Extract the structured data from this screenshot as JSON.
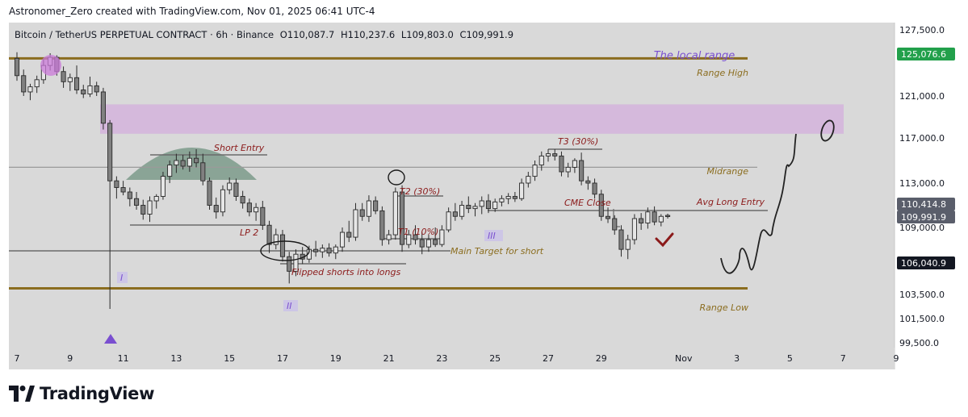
{
  "header": {
    "attribution": "Astronomer_Zero created with TradingView.com, Nov 01, 2025 06:41 UTC-4"
  },
  "symbol_line": {
    "title": "Bitcoin / TetherUS PERPETUAL CONTRACT · 6h · Binance",
    "open": "O110,087.7",
    "high": "H110,237.6",
    "low": "L109,803.0",
    "close": "C109,991.9"
  },
  "footer": {
    "brand": "TradingView"
  },
  "colors": {
    "background": "#d9d9d9",
    "range_line": "#8b6d1f",
    "range_text": "#8b6d1f",
    "annotation_text": "#8b1a1a",
    "zone_fill": "#d4b3dc",
    "dome_fill": "#7b9a8a",
    "candle_up": "#e6e6e6",
    "candle_down": "#808080",
    "label_purple": "#7a4fd0",
    "price_green": "#22a04b",
    "price_gray": "#5a5e6b",
    "price_black": "#131722",
    "check": "#8b1a1a"
  },
  "chart_data": {
    "type": "candlestick",
    "timeframe": "6h",
    "x_ticks": [
      "7",
      "9",
      "11",
      "13",
      "15",
      "17",
      "19",
      "21",
      "23",
      "25",
      "27",
      "29",
      "Nov",
      "3",
      "5",
      "7",
      "9"
    ],
    "y_ticks": [
      "127,500.0",
      "121,000.0",
      "117,000.0",
      "113,000.0",
      "109,000.0",
      "103,500.0",
      "101,500.0",
      "99,500.0"
    ],
    "price_labels": [
      {
        "text": "125,076.6",
        "value": 125076.6,
        "style": "green"
      },
      {
        "text": "110,414.8",
        "value": 110414.8,
        "style": "gray"
      },
      {
        "text": "109,991.9",
        "value": 109991.9,
        "style": "gray"
      },
      {
        "text": "106,040.9",
        "value": 106040.9,
        "style": "black"
      }
    ],
    "levels": [
      {
        "name": "Range High",
        "value": 124700,
        "style": "range"
      },
      {
        "name": "Range Low",
        "value": 104000,
        "style": "range"
      },
      {
        "name": "Midrange",
        "value": 114400,
        "style": "gray"
      },
      {
        "name": "Avg Long Entry",
        "value": 110500,
        "style": "dark"
      }
    ],
    "zone": {
      "top": 120200,
      "bottom": 117400
    },
    "candles": [
      {
        "t": 7.0,
        "o": 124.7,
        "h": 125.3,
        "l": 122.5,
        "c": 123.0
      },
      {
        "t": 7.25,
        "o": 123.0,
        "h": 123.6,
        "l": 121.0,
        "c": 121.4
      },
      {
        "t": 7.5,
        "o": 121.4,
        "h": 122.2,
        "l": 120.6,
        "c": 121.9
      },
      {
        "t": 7.75,
        "o": 121.9,
        "h": 123.0,
        "l": 121.3,
        "c": 122.6
      },
      {
        "t": 8.0,
        "o": 122.6,
        "h": 124.6,
        "l": 122.2,
        "c": 124.0
      },
      {
        "t": 8.25,
        "o": 124.0,
        "h": 125.2,
        "l": 123.5,
        "c": 124.8
      },
      {
        "t": 8.5,
        "o": 124.8,
        "h": 125.0,
        "l": 123.0,
        "c": 123.4
      },
      {
        "t": 8.75,
        "o": 123.4,
        "h": 123.9,
        "l": 121.8,
        "c": 122.4
      },
      {
        "t": 9.0,
        "o": 122.4,
        "h": 123.2,
        "l": 121.5,
        "c": 122.8
      },
      {
        "t": 9.25,
        "o": 122.8,
        "h": 124.0,
        "l": 121.2,
        "c": 121.6
      },
      {
        "t": 9.5,
        "o": 121.6,
        "h": 122.1,
        "l": 120.8,
        "c": 121.2
      },
      {
        "t": 9.75,
        "o": 121.2,
        "h": 122.9,
        "l": 120.9,
        "c": 122.0
      },
      {
        "t": 10.0,
        "o": 122.0,
        "h": 122.4,
        "l": 121.0,
        "c": 121.4
      },
      {
        "t": 10.25,
        "o": 121.4,
        "h": 121.8,
        "l": 117.8,
        "c": 118.4
      },
      {
        "t": 10.5,
        "o": 118.4,
        "h": 118.7,
        "l": 102.3,
        "c": 113.2
      },
      {
        "t": 10.75,
        "o": 113.2,
        "h": 113.6,
        "l": 111.6,
        "c": 112.6
      },
      {
        "t": 11.0,
        "o": 112.6,
        "h": 113.2,
        "l": 111.9,
        "c": 112.2
      },
      {
        "t": 11.25,
        "o": 112.2,
        "h": 112.6,
        "l": 110.9,
        "c": 111.6
      },
      {
        "t": 11.5,
        "o": 111.6,
        "h": 112.2,
        "l": 110.6,
        "c": 111.0
      },
      {
        "t": 11.75,
        "o": 111.0,
        "h": 111.5,
        "l": 109.7,
        "c": 110.2
      },
      {
        "t": 12.0,
        "o": 110.2,
        "h": 111.8,
        "l": 109.5,
        "c": 111.4
      },
      {
        "t": 12.25,
        "o": 111.4,
        "h": 112.0,
        "l": 110.7,
        "c": 111.8
      },
      {
        "t": 12.5,
        "o": 111.8,
        "h": 114.0,
        "l": 111.5,
        "c": 113.6
      },
      {
        "t": 12.75,
        "o": 113.6,
        "h": 115.0,
        "l": 113.0,
        "c": 114.6
      },
      {
        "t": 13.0,
        "o": 114.6,
        "h": 115.6,
        "l": 113.9,
        "c": 115.0
      },
      {
        "t": 13.25,
        "o": 115.0,
        "h": 115.5,
        "l": 114.2,
        "c": 114.5
      },
      {
        "t": 13.5,
        "o": 114.5,
        "h": 115.8,
        "l": 114.0,
        "c": 115.2
      },
      {
        "t": 13.75,
        "o": 115.2,
        "h": 116.0,
        "l": 114.4,
        "c": 114.8
      },
      {
        "t": 14.0,
        "o": 114.8,
        "h": 115.6,
        "l": 112.8,
        "c": 113.2
      },
      {
        "t": 14.25,
        "o": 113.2,
        "h": 113.5,
        "l": 110.6,
        "c": 111.0
      },
      {
        "t": 14.5,
        "o": 111.0,
        "h": 111.7,
        "l": 109.8,
        "c": 110.4
      },
      {
        "t": 14.75,
        "o": 110.4,
        "h": 112.8,
        "l": 110.0,
        "c": 112.4
      },
      {
        "t": 15.0,
        "o": 112.4,
        "h": 113.5,
        "l": 112.0,
        "c": 113.0
      },
      {
        "t": 15.25,
        "o": 113.0,
        "h": 113.4,
        "l": 111.4,
        "c": 111.8
      },
      {
        "t": 15.5,
        "o": 111.8,
        "h": 112.3,
        "l": 110.7,
        "c": 111.2
      },
      {
        "t": 15.75,
        "o": 111.2,
        "h": 111.6,
        "l": 110.0,
        "c": 110.4
      },
      {
        "t": 16.0,
        "o": 110.4,
        "h": 111.2,
        "l": 109.6,
        "c": 110.8
      },
      {
        "t": 16.25,
        "o": 110.8,
        "h": 111.4,
        "l": 108.8,
        "c": 109.2
      },
      {
        "t": 16.5,
        "o": 109.2,
        "h": 109.6,
        "l": 106.9,
        "c": 107.6
      },
      {
        "t": 16.75,
        "o": 107.6,
        "h": 108.9,
        "l": 107.2,
        "c": 108.4
      },
      {
        "t": 17.0,
        "o": 108.4,
        "h": 108.8,
        "l": 106.2,
        "c": 106.6
      },
      {
        "t": 17.25,
        "o": 106.6,
        "h": 107.0,
        "l": 104.4,
        "c": 105.4
      },
      {
        "t": 17.5,
        "o": 105.4,
        "h": 107.2,
        "l": 105.0,
        "c": 106.8
      },
      {
        "t": 17.75,
        "o": 106.8,
        "h": 107.4,
        "l": 106.0,
        "c": 106.4
      },
      {
        "t": 18.0,
        "o": 106.4,
        "h": 107.5,
        "l": 106.1,
        "c": 107.2
      },
      {
        "t": 18.25,
        "o": 107.2,
        "h": 107.9,
        "l": 106.6,
        "c": 107.0
      },
      {
        "t": 18.5,
        "o": 107.0,
        "h": 107.6,
        "l": 106.5,
        "c": 107.3
      },
      {
        "t": 18.75,
        "o": 107.3,
        "h": 107.7,
        "l": 106.6,
        "c": 106.9
      },
      {
        "t": 19.0,
        "o": 106.9,
        "h": 107.6,
        "l": 106.4,
        "c": 107.4
      },
      {
        "t": 19.25,
        "o": 107.4,
        "h": 109.0,
        "l": 107.0,
        "c": 108.6
      },
      {
        "t": 19.5,
        "o": 108.6,
        "h": 109.6,
        "l": 107.8,
        "c": 108.2
      },
      {
        "t": 19.75,
        "o": 108.2,
        "h": 111.2,
        "l": 107.9,
        "c": 110.6
      },
      {
        "t": 20.0,
        "o": 110.6,
        "h": 111.2,
        "l": 109.6,
        "c": 110.0
      },
      {
        "t": 20.25,
        "o": 110.0,
        "h": 111.9,
        "l": 109.5,
        "c": 111.4
      },
      {
        "t": 20.5,
        "o": 111.4,
        "h": 111.8,
        "l": 110.2,
        "c": 110.5
      },
      {
        "t": 20.75,
        "o": 110.5,
        "h": 110.9,
        "l": 107.5,
        "c": 108.0
      },
      {
        "t": 21.0,
        "o": 108.0,
        "h": 108.8,
        "l": 107.6,
        "c": 108.4
      },
      {
        "t": 21.25,
        "o": 108.4,
        "h": 112.6,
        "l": 108.0,
        "c": 112.2
      },
      {
        "t": 21.5,
        "o": 112.2,
        "h": 112.8,
        "l": 107.0,
        "c": 107.6
      },
      {
        "t": 21.75,
        "o": 107.6,
        "h": 108.8,
        "l": 107.3,
        "c": 108.4
      },
      {
        "t": 22.0,
        "o": 108.4,
        "h": 109.2,
        "l": 107.6,
        "c": 108.0
      },
      {
        "t": 22.25,
        "o": 108.0,
        "h": 108.6,
        "l": 106.8,
        "c": 107.4
      },
      {
        "t": 22.5,
        "o": 107.4,
        "h": 108.4,
        "l": 107.0,
        "c": 108.0
      },
      {
        "t": 22.75,
        "o": 108.0,
        "h": 109.0,
        "l": 107.4,
        "c": 107.6
      },
      {
        "t": 23.0,
        "o": 107.6,
        "h": 109.2,
        "l": 107.4,
        "c": 108.8
      },
      {
        "t": 23.25,
        "o": 108.8,
        "h": 110.8,
        "l": 108.6,
        "c": 110.4
      },
      {
        "t": 23.5,
        "o": 110.4,
        "h": 111.2,
        "l": 109.6,
        "c": 110.0
      },
      {
        "t": 23.75,
        "o": 110.0,
        "h": 111.4,
        "l": 109.7,
        "c": 111.0
      },
      {
        "t": 24.0,
        "o": 111.0,
        "h": 111.8,
        "l": 110.3,
        "c": 110.7
      },
      {
        "t": 24.25,
        "o": 110.7,
        "h": 111.2,
        "l": 110.0,
        "c": 110.9
      },
      {
        "t": 24.5,
        "o": 110.9,
        "h": 111.8,
        "l": 110.2,
        "c": 111.4
      },
      {
        "t": 24.75,
        "o": 111.4,
        "h": 112.0,
        "l": 110.3,
        "c": 110.7
      },
      {
        "t": 25.0,
        "o": 110.7,
        "h": 111.6,
        "l": 110.4,
        "c": 111.3
      },
      {
        "t": 25.25,
        "o": 111.3,
        "h": 111.9,
        "l": 110.9,
        "c": 111.6
      },
      {
        "t": 25.5,
        "o": 111.6,
        "h": 112.1,
        "l": 111.1,
        "c": 111.8
      },
      {
        "t": 25.75,
        "o": 111.8,
        "h": 112.2,
        "l": 111.3,
        "c": 111.6
      },
      {
        "t": 26.0,
        "o": 111.6,
        "h": 113.4,
        "l": 111.4,
        "c": 113.0
      },
      {
        "t": 26.25,
        "o": 113.0,
        "h": 114.0,
        "l": 112.6,
        "c": 113.6
      },
      {
        "t": 26.5,
        "o": 113.6,
        "h": 115.0,
        "l": 113.2,
        "c": 114.6
      },
      {
        "t": 26.75,
        "o": 114.6,
        "h": 115.8,
        "l": 114.1,
        "c": 115.4
      },
      {
        "t": 27.0,
        "o": 115.4,
        "h": 116.0,
        "l": 114.9,
        "c": 115.6
      },
      {
        "t": 27.25,
        "o": 115.6,
        "h": 116.0,
        "l": 115.0,
        "c": 115.4
      },
      {
        "t": 27.5,
        "o": 115.4,
        "h": 115.8,
        "l": 113.6,
        "c": 114.0
      },
      {
        "t": 27.75,
        "o": 114.0,
        "h": 114.8,
        "l": 113.5,
        "c": 114.4
      },
      {
        "t": 28.0,
        "o": 114.4,
        "h": 115.2,
        "l": 113.9,
        "c": 115.0
      },
      {
        "t": 28.25,
        "o": 115.0,
        "h": 115.7,
        "l": 112.8,
        "c": 113.2
      },
      {
        "t": 28.5,
        "o": 113.2,
        "h": 113.6,
        "l": 112.4,
        "c": 113.0
      },
      {
        "t": 28.75,
        "o": 113.0,
        "h": 113.4,
        "l": 111.6,
        "c": 112.0
      },
      {
        "t": 29.0,
        "o": 112.0,
        "h": 112.4,
        "l": 109.6,
        "c": 110.0
      },
      {
        "t": 29.25,
        "o": 110.0,
        "h": 110.8,
        "l": 109.4,
        "c": 109.8
      },
      {
        "t": 29.5,
        "o": 109.8,
        "h": 110.1,
        "l": 108.4,
        "c": 108.8
      },
      {
        "t": 29.75,
        "o": 108.8,
        "h": 109.2,
        "l": 106.6,
        "c": 107.2
      },
      {
        "t": 30.0,
        "o": 107.2,
        "h": 108.4,
        "l": 106.4,
        "c": 108.0
      },
      {
        "t": 30.25,
        "o": 108.0,
        "h": 110.2,
        "l": 107.6,
        "c": 109.8
      },
      {
        "t": 30.5,
        "o": 109.8,
        "h": 110.3,
        "l": 108.8,
        "c": 109.4
      },
      {
        "t": 30.75,
        "o": 109.4,
        "h": 110.8,
        "l": 108.9,
        "c": 110.4
      },
      {
        "t": 31.0,
        "o": 110.4,
        "h": 110.9,
        "l": 109.2,
        "c": 109.5
      },
      {
        "t": 31.25,
        "o": 109.5,
        "h": 110.2,
        "l": 109.1,
        "c": 110.0
      },
      {
        "t": 31.5,
        "o": 110.09,
        "h": 110.24,
        "l": 109.8,
        "c": 109.99
      }
    ],
    "annotations": {
      "title_note": "The local range",
      "short_entry": "Short Entry",
      "lp2": "LP 2",
      "flipped": "Flipped shorts into longs",
      "t1": "T1 (10%)",
      "t2": "T2 (30%)",
      "t3": "T3 (30%)",
      "cme_close": "CME Close",
      "main_target": "Main Target for short",
      "wave_1": "I",
      "wave_2": "II",
      "wave_3": "III"
    }
  }
}
